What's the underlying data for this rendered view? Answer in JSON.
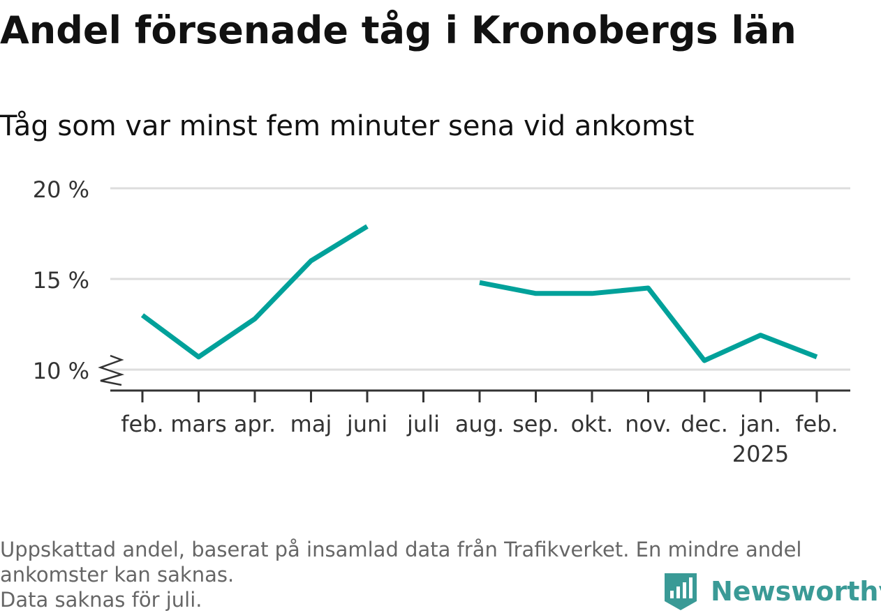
{
  "header": {
    "title": "Andel försenade tåg i Kronobergs län",
    "subtitle": "Tåg som var minst fem minuter sena vid ankomst"
  },
  "footer": {
    "note_line1": "Uppskattad andel, baserat på insamlad data från Trafikverket. En mindre andel",
    "note_line2": "ankomster kan saknas.",
    "note_line3": "Data saknas för juli.",
    "brand": "Newsworthy",
    "brand_icon": "bar-chart-badge-icon",
    "brand_color": "#3a9a96"
  },
  "chart_data": {
    "type": "line",
    "x": [
      "feb.",
      "mars",
      "apr.",
      "maj",
      "juni",
      "juli",
      "aug.",
      "sep.",
      "okt.",
      "nov.",
      "dec.",
      "jan.",
      "feb."
    ],
    "x_sublabels": [
      "",
      "",
      "",
      "",
      "",
      "",
      "",
      "",
      "",
      "",
      "",
      "2025",
      ""
    ],
    "series": [
      {
        "values": [
          13.0,
          10.7,
          12.8,
          16.0,
          17.9,
          null,
          14.8,
          14.2,
          14.2,
          14.5,
          10.5,
          11.9,
          10.7
        ],
        "color": "#00a19a"
      }
    ],
    "y_ticks": [
      10,
      15,
      20
    ],
    "y_tick_labels": [
      "10 %",
      "15 %",
      "20 %"
    ],
    "ylim": [
      9.0,
      20
    ],
    "y_axis_break": true,
    "grid": true,
    "gridline_color": "#dddddd",
    "xlabel": "",
    "ylabel": ""
  }
}
